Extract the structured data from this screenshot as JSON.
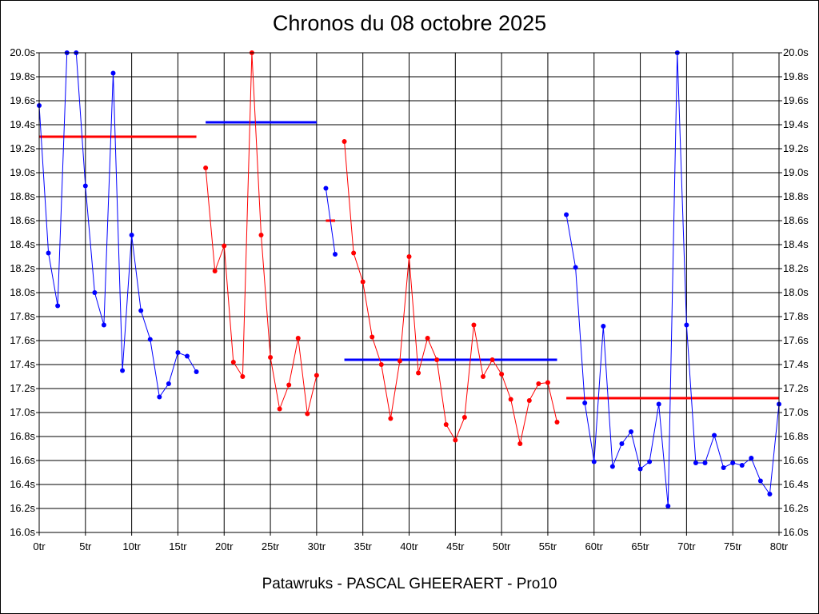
{
  "chart_data": {
    "type": "line",
    "title": "Chronos du 08 octobre 2025",
    "subtitle": "Patawruks - PASCAL GHEERAERT - Pro10",
    "xlabel": "",
    "ylabel": "",
    "xlim": [
      0,
      80
    ],
    "ylim": [
      16.0,
      20.0
    ],
    "grid": true,
    "x_tick_labels": [
      "0tr",
      "5tr",
      "10tr",
      "15tr",
      "20tr",
      "25tr",
      "30tr",
      "35tr",
      "40tr",
      "45tr",
      "50tr",
      "55tr",
      "60tr",
      "65tr",
      "70tr",
      "75tr",
      "80tr"
    ],
    "y_tick_labels": [
      "16.0s",
      "16.2s",
      "16.4s",
      "16.6s",
      "16.8s",
      "17.0s",
      "17.2s",
      "17.4s",
      "17.6s",
      "17.8s",
      "18.0s",
      "18.2s",
      "18.4s",
      "18.6s",
      "18.8s",
      "19.0s",
      "19.2s",
      "19.4s",
      "19.6s",
      "19.8s",
      "20.0s"
    ],
    "colors": {
      "blue": "#0000ff",
      "red": "#ff0000"
    },
    "series": [
      {
        "color": "#0000ff",
        "points": [
          [
            0,
            19.56
          ],
          [
            1,
            18.33
          ],
          [
            2,
            17.89
          ],
          [
            3,
            20.0
          ],
          [
            4,
            20.0
          ],
          [
            5,
            18.89
          ],
          [
            6,
            18.0
          ],
          [
            7,
            17.73
          ],
          [
            8,
            19.83
          ],
          [
            9,
            17.35
          ],
          [
            10,
            18.48
          ],
          [
            11,
            17.85
          ],
          [
            12,
            17.61
          ],
          [
            13,
            17.13
          ],
          [
            14,
            17.24
          ],
          [
            15,
            17.5
          ],
          [
            16,
            17.47
          ],
          [
            17,
            17.34
          ]
        ]
      },
      {
        "color": "#ff0000",
        "points": [
          [
            18,
            19.04
          ],
          [
            19,
            18.18
          ],
          [
            20,
            18.39
          ],
          [
            21,
            17.42
          ],
          [
            22,
            17.3
          ],
          [
            23,
            20.0
          ],
          [
            24,
            18.48
          ],
          [
            25,
            17.46
          ],
          [
            26,
            17.03
          ],
          [
            27,
            17.23
          ],
          [
            28,
            17.62
          ],
          [
            29,
            16.99
          ],
          [
            30,
            17.31
          ]
        ]
      },
      {
        "color": "#0000ff",
        "points": [
          [
            31,
            18.87
          ],
          [
            32,
            18.32
          ]
        ]
      },
      {
        "color": "#ff0000",
        "points": [
          [
            33,
            19.26
          ],
          [
            34,
            18.33
          ],
          [
            35,
            18.09
          ],
          [
            36,
            17.63
          ],
          [
            37,
            17.4
          ],
          [
            38,
            16.95
          ],
          [
            39,
            17.43
          ],
          [
            40,
            18.3
          ],
          [
            41,
            17.33
          ],
          [
            42,
            17.62
          ],
          [
            43,
            17.44
          ],
          [
            44,
            16.9
          ],
          [
            45,
            16.77
          ],
          [
            46,
            16.96
          ],
          [
            47,
            17.73
          ],
          [
            48,
            17.3
          ],
          [
            49,
            17.44
          ],
          [
            50,
            17.32
          ],
          [
            51,
            17.11
          ],
          [
            52,
            16.74
          ],
          [
            53,
            17.1
          ],
          [
            54,
            17.24
          ],
          [
            55,
            17.25
          ],
          [
            56,
            16.92
          ]
        ]
      },
      {
        "color": "#0000ff",
        "points": [
          [
            57,
            18.65
          ],
          [
            58,
            18.21
          ],
          [
            59,
            17.08
          ],
          [
            60,
            16.59
          ],
          [
            61,
            17.72
          ],
          [
            62,
            16.55
          ],
          [
            63,
            16.74
          ],
          [
            64,
            16.84
          ],
          [
            65,
            16.53
          ],
          [
            66,
            16.59
          ],
          [
            67,
            17.07
          ],
          [
            68,
            16.22
          ],
          [
            69,
            20.0
          ],
          [
            70,
            17.73
          ],
          [
            71,
            16.58
          ],
          [
            72,
            16.58
          ],
          [
            73,
            16.81
          ],
          [
            74,
            16.54
          ],
          [
            75,
            16.58
          ],
          [
            76,
            16.56
          ],
          [
            77,
            16.62
          ],
          [
            78,
            16.43
          ],
          [
            79,
            16.32
          ],
          [
            80,
            17.07
          ]
        ]
      }
    ],
    "averages": [
      {
        "color": "#ff0000",
        "x_start": 0,
        "x_end": 17,
        "value": 19.3
      },
      {
        "color": "#0000ff",
        "x_start": 18,
        "x_end": 30,
        "value": 19.42
      },
      {
        "color": "#ff0000",
        "x_start": 31,
        "x_end": 32,
        "value": 18.6
      },
      {
        "color": "#0000ff",
        "x_start": 33,
        "x_end": 56,
        "value": 17.44
      },
      {
        "color": "#ff0000",
        "x_start": 57,
        "x_end": 80,
        "value": 17.12
      }
    ]
  }
}
